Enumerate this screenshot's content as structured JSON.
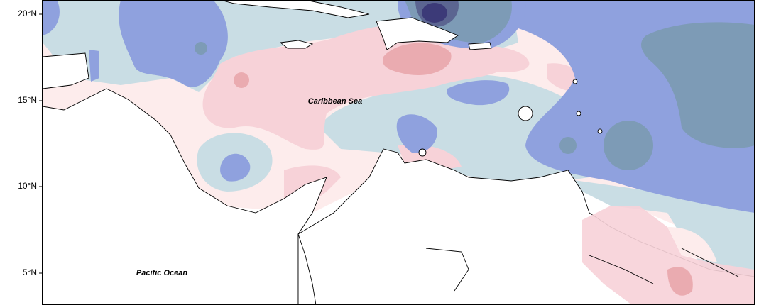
{
  "axis": {
    "lat_ticks": [
      "20°N",
      "15°N",
      "10°N",
      "5°N"
    ]
  },
  "labels": {
    "sea": "Caribbean Sea",
    "ocean": "Pacific Ocean"
  }
}
